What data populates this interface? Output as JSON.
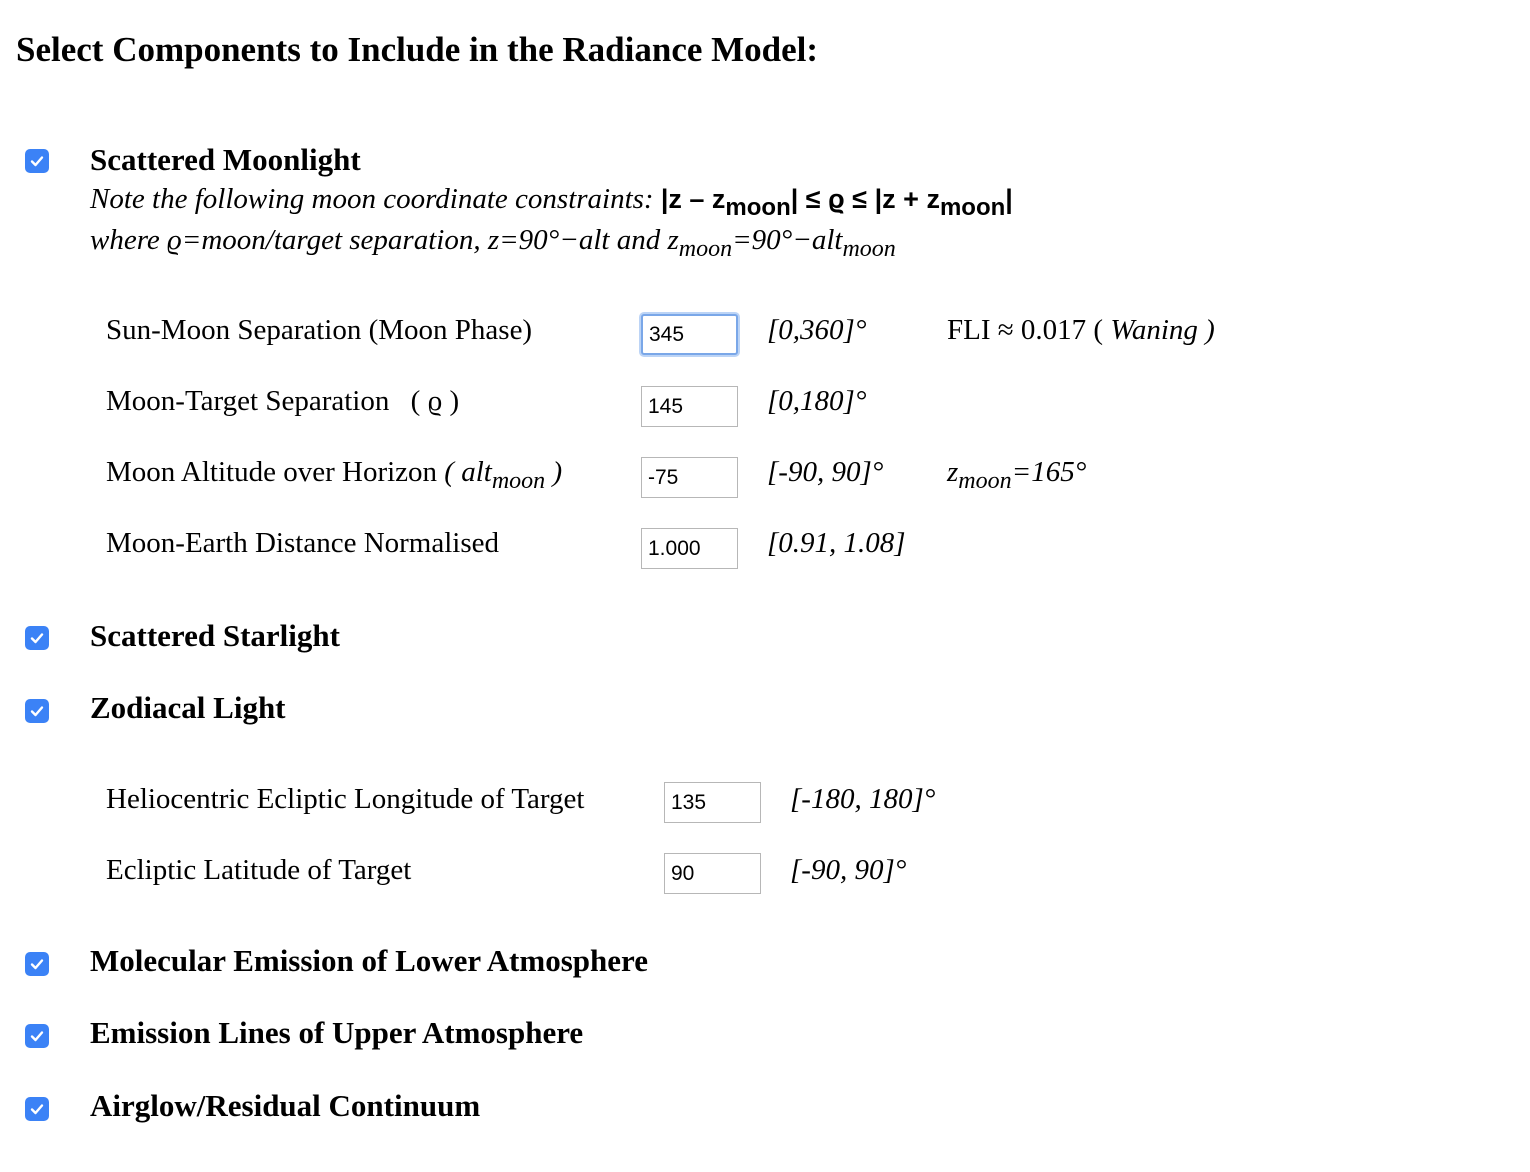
{
  "title": "Select Components to Include in the Radiance Model:",
  "sections": {
    "moonlight": {
      "label": "Scattered Moonlight",
      "checked": true,
      "note_line1_text": "Note the following moon coordinate constraints:",
      "note_line1_math": "|z – z",
      "note_line1_sub": "moon",
      "note_line1_math2": "| ≤ ϱ ≤ |z + z",
      "note_line1_sub2": "moon",
      "note_line1_math3": "|",
      "note_line2_a": "where ϱ=moon/target separation, z=90°−alt and z",
      "note_line2_sub": "moon",
      "note_line2_b": "=90°−alt",
      "note_line2_sub2": "moon",
      "params": {
        "sun_moon": {
          "label": "Sun-Moon Separation (Moon Phase)",
          "value": "345",
          "range": "[0,360]°",
          "fli_prefix": "FLI ≈ 0.017 (",
          "fli_phase": "Waning",
          "fli_suffix": ")"
        },
        "moon_target": {
          "label": "Moon-Target Separation",
          "label_symbol": "( ϱ )",
          "value": "145",
          "range": "[0,180]°"
        },
        "moon_alt": {
          "label": "Moon Altitude over Horizon",
          "label_paren_open": "(",
          "label_alt": "alt",
          "label_sub": "moon",
          "label_paren_close": ")",
          "value": "-75",
          "range": "[-90, 90]°",
          "zmoon_z": "z",
          "zmoon_sub": "moon",
          "zmoon_value": "=165°"
        },
        "moon_dist": {
          "label": "Moon-Earth Distance Normalised",
          "value": "1.000",
          "range": "[0.91, 1.08]"
        }
      }
    },
    "starlight": {
      "label": "Scattered Starlight",
      "checked": true
    },
    "zodiacal": {
      "label": "Zodiacal Light",
      "checked": true,
      "params": {
        "ecl_lon": {
          "label": "Heliocentric Ecliptic Longitude of Target",
          "value": "135",
          "range": "[-180, 180]°"
        },
        "ecl_lat": {
          "label": "Ecliptic Latitude of Target",
          "value": "90",
          "range": "[-90, 90]°"
        }
      }
    },
    "molecular": {
      "label": "Molecular Emission of Lower Atmosphere",
      "checked": true
    },
    "emission_lines": {
      "label": "Emission Lines of Upper Atmosphere",
      "checked": true
    },
    "airglow": {
      "label": "Airglow/Residual Continuum",
      "checked": true
    }
  },
  "colors": {
    "checkbox": "#3b82f6",
    "input_border": "#b7b7b7",
    "focus_border": "#7aa7e8"
  }
}
